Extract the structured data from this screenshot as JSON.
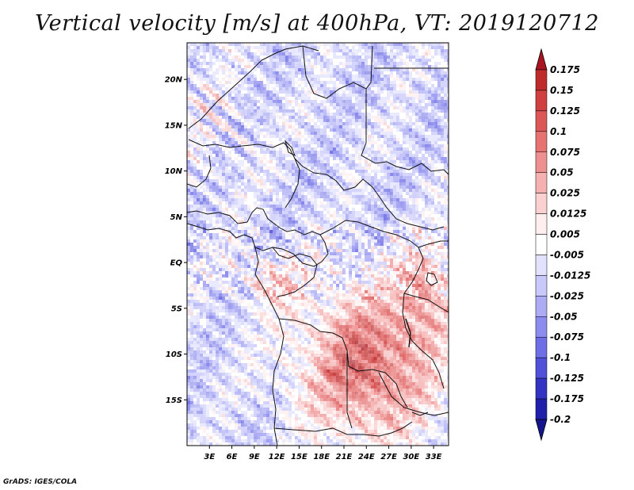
{
  "chart_data": {
    "type": "heatmap",
    "title": "Vertical velocity [m/s] at 400hPa, VT: 2019120712",
    "variable": "Vertical velocity",
    "units": "m/s",
    "level": "400hPa",
    "valid_time": "2019120712",
    "lon_range": [
      0,
      35
    ],
    "lat_range": [
      -20,
      24
    ],
    "x_ticks": [
      "3E",
      "6E",
      "9E",
      "12E",
      "15E",
      "18E",
      "21E",
      "24E",
      "27E",
      "30E",
      "33E"
    ],
    "x_tick_values": [
      3,
      6,
      9,
      12,
      15,
      18,
      21,
      24,
      27,
      30,
      33
    ],
    "y_ticks": [
      "20N",
      "15N",
      "10N",
      "5N",
      "EQ",
      "5S",
      "10S",
      "15S"
    ],
    "y_tick_values": [
      20,
      15,
      10,
      5,
      0,
      -5,
      -10,
      -15
    ],
    "colorbar": {
      "levels": [
        "0.175",
        "0.15",
        "0.125",
        "0.1",
        "0.075",
        "0.05",
        "0.025",
        "0.0125",
        "0.005",
        "-0.005",
        "-0.0125",
        "-0.025",
        "-0.05",
        "-0.075",
        "-0.1",
        "-0.125",
        "-0.175",
        "-0.2"
      ],
      "colors": [
        "#aa1420",
        "#bf2a2a",
        "#d04040",
        "#dc5858",
        "#e67272",
        "#ee9090",
        "#f5b0b0",
        "#fad0d0",
        "#ffeeee",
        "#ffffff",
        "#e2e2ff",
        "#c8c8fb",
        "#acacf5",
        "#8c8cef",
        "#6e6ee6",
        "#5050d8",
        "#3434c4",
        "#2020aa",
        "#14148c"
      ]
    }
  },
  "footer": {
    "credit": "GrADS: IGES/COLA"
  }
}
